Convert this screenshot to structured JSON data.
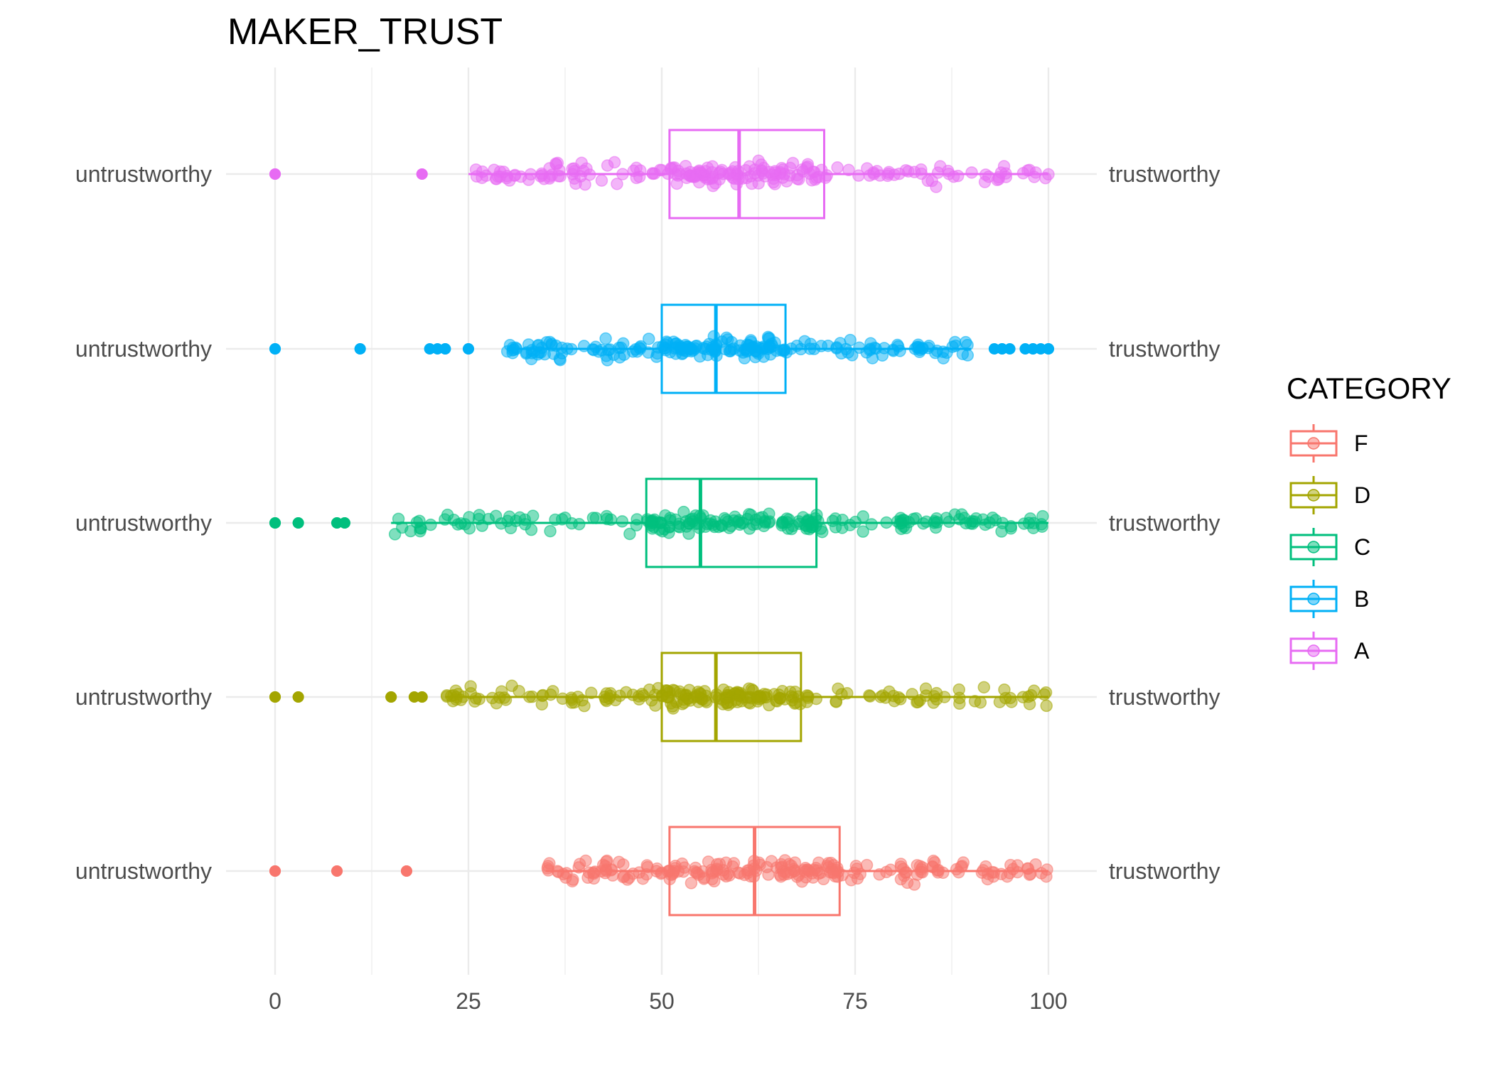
{
  "chart_data": {
    "type": "boxplot",
    "title": "MAKER_TRUST",
    "xlabel": "",
    "ylabel": "",
    "xlim": [
      0,
      100
    ],
    "x_ticks": [
      "0",
      "25",
      "50",
      "75",
      "100"
    ],
    "left_label": "untrustworthy",
    "right_label": "trustworthy",
    "grid": true,
    "legend": {
      "title": "CATEGORY",
      "placement": "right",
      "entries": [
        "F",
        "D",
        "C",
        "B",
        "A"
      ]
    },
    "categories": [
      "A",
      "B",
      "C",
      "D",
      "F"
    ],
    "series": [
      {
        "name": "A",
        "color": "#E76BF3",
        "min": 25,
        "q1": 51,
        "median": 60,
        "q3": 71,
        "max": 100,
        "outliers": [
          0,
          0,
          0,
          19,
          19
        ]
      },
      {
        "name": "B",
        "color": "#00B0F6",
        "min": 30,
        "q1": 50,
        "median": 57,
        "q3": 66,
        "max": 90,
        "outliers": [
          0,
          0,
          0,
          11,
          11,
          20,
          21,
          22,
          22,
          25,
          25,
          93,
          94,
          94,
          95,
          97,
          98,
          98,
          99,
          100,
          100
        ]
      },
      {
        "name": "C",
        "color": "#00BF7D",
        "min": 15,
        "q1": 48,
        "median": 55,
        "q3": 70,
        "max": 100,
        "outliers": [
          0,
          0,
          0,
          3,
          3,
          8,
          8,
          9,
          9
        ]
      },
      {
        "name": "D",
        "color": "#A3A500",
        "min": 22,
        "q1": 50,
        "median": 57,
        "q3": 68,
        "max": 100,
        "outliers": [
          0,
          0,
          0,
          3,
          3,
          15,
          15,
          18,
          19,
          19
        ]
      },
      {
        "name": "F",
        "color": "#F8766D",
        "min": 35,
        "q1": 51,
        "median": 62,
        "q3": 73,
        "max": 100,
        "outliers": [
          0,
          0,
          0,
          8,
          8,
          17,
          17
        ]
      }
    ]
  }
}
